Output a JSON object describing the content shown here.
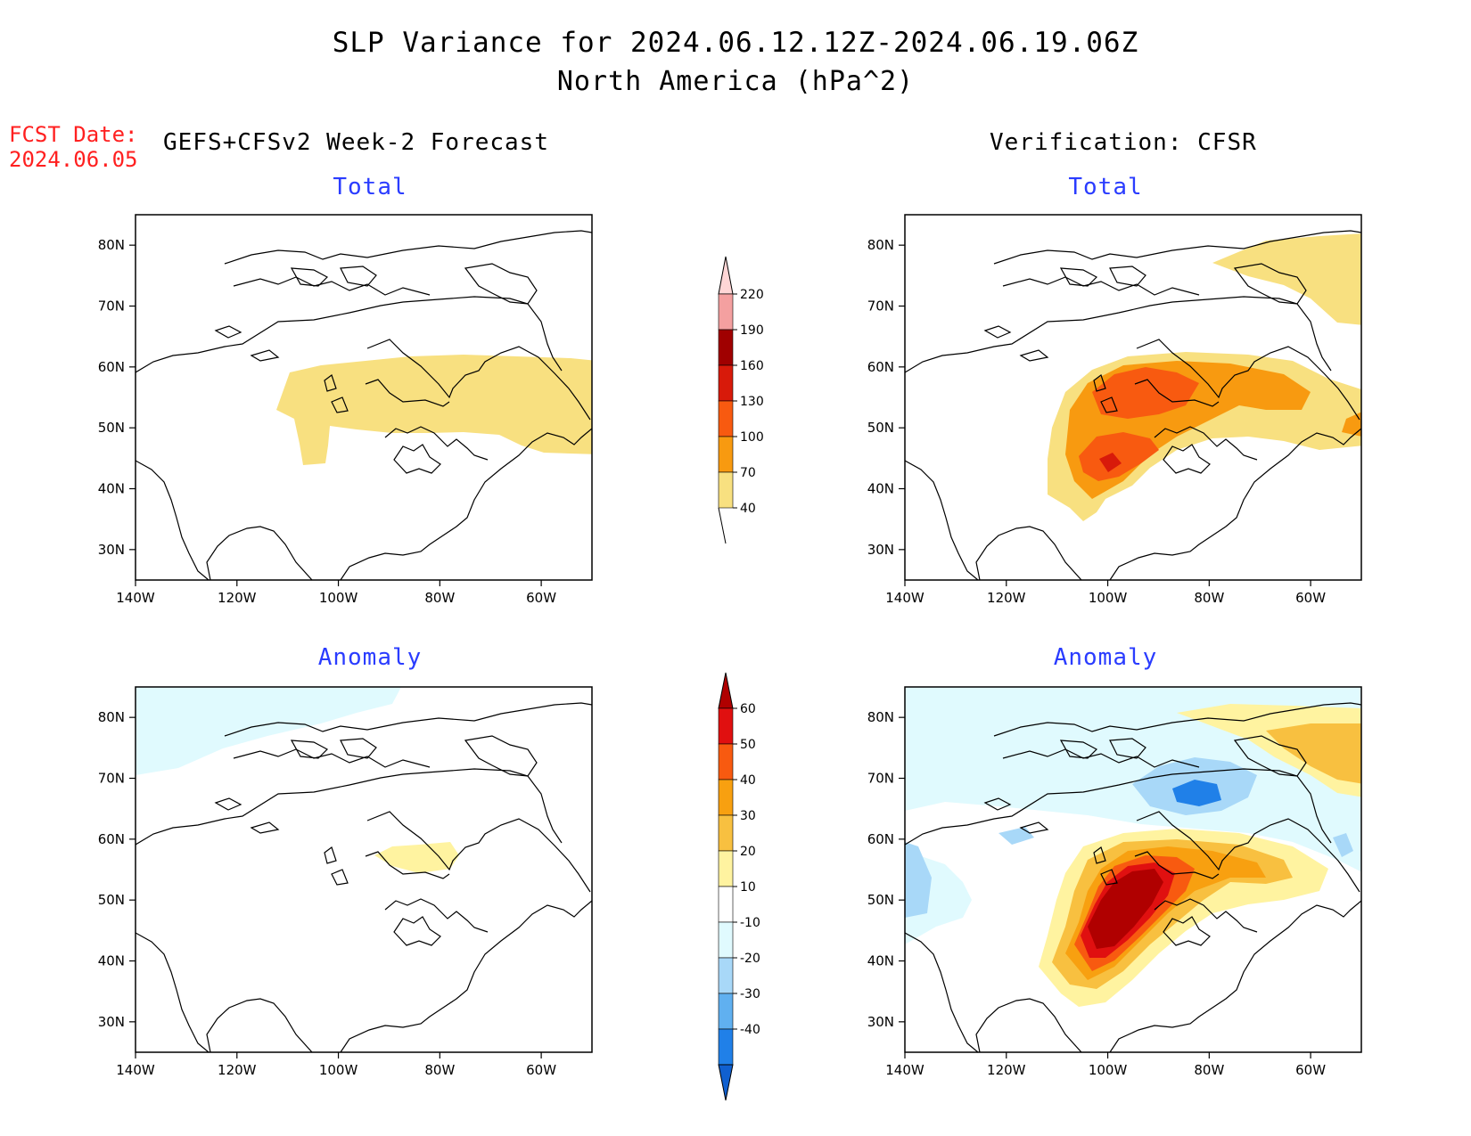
{
  "title": {
    "line1": "SLP Variance for 2024.06.12.12Z-2024.06.19.06Z",
    "line2": "North America (hPa^2)"
  },
  "fcst_date": {
    "label": "FCST Date:",
    "value": "2024.06.05"
  },
  "columns": {
    "left": "GEFS+CFSv2 Week-2 Forecast",
    "right": "Verification: CFSR"
  },
  "panel_titles": {
    "forecast_total": "Total",
    "forecast_anomaly": "Anomaly",
    "verification_total": "Total",
    "verification_anomaly": "Anomaly"
  },
  "axes": {
    "lon_ticks": [
      "140W",
      "120W",
      "100W",
      "80W",
      "60W"
    ],
    "lat_ticks": [
      "80N",
      "70N",
      "60N",
      "50N",
      "40N",
      "30N"
    ],
    "lon_range": [
      -140,
      -50
    ],
    "lat_range": [
      25,
      85
    ]
  },
  "total_colorbar": {
    "labels": [
      "220",
      "190",
      "160",
      "130",
      "100",
      "70",
      "40"
    ],
    "colors": [
      "#ffd6d6",
      "#f4a0a0",
      "#a00000",
      "#d81a0a",
      "#f85a10",
      "#f89a10",
      "#f8e080"
    ]
  },
  "anomaly_colorbar": {
    "labels": [
      "60",
      "50",
      "40",
      "30",
      "20",
      "10",
      "-10",
      "-20",
      "-30",
      "-40"
    ],
    "colors": [
      "#b00000",
      "#e01010",
      "#f85a10",
      "#f8a010",
      "#f8c040",
      "#fff3a0",
      "#ffffff",
      "#e0fafe",
      "#a8d8f8",
      "#60b0f0",
      "#2080e8",
      "#1060d0"
    ]
  },
  "map_data": {
    "forecast_total": [
      {
        "level": "40-70",
        "color": "#f8e080",
        "region": "central and eastern Canada, 48N-62N, 112W-50W"
      }
    ],
    "verification_total": [
      {
        "level": "40-70",
        "color": "#f8e080",
        "region": "Canada, Great Plains and Greenland"
      },
      {
        "level": "70-100",
        "color": "#f89a10",
        "region": "Prairies to Quebec and Great Plains"
      },
      {
        "level": "100-130",
        "color": "#f85a10",
        "region": "Manitoba and Northern Plains"
      },
      {
        "level": "130-160",
        "color": "#d81a0a",
        "region": "Northern Plains near 100W 45N"
      }
    ],
    "forecast_anomaly": [
      {
        "level": "-10 to -20",
        "color": "#e0fafe",
        "region": "Arctic Ocean north of Alaska"
      },
      {
        "level": "10-20",
        "color": "#fff3a0",
        "region": "Hudson Bay southern shore"
      }
    ],
    "verification_anomaly": [
      {
        "level": "40-60+",
        "color": "#b00000",
        "region": "Northern Plains and Manitoba"
      },
      {
        "level": "20-40",
        "color": "#f8a010",
        "region": "Ontario to Quebec, Greenland"
      },
      {
        "level": "-20 to -40",
        "color": "#2080e8",
        "region": "Foxe Basin / northern Hudson Bay"
      },
      {
        "level": "-10 to -20",
        "color": "#a8d8f8",
        "region": "Pacific coast and Labrador Sea"
      }
    ]
  }
}
